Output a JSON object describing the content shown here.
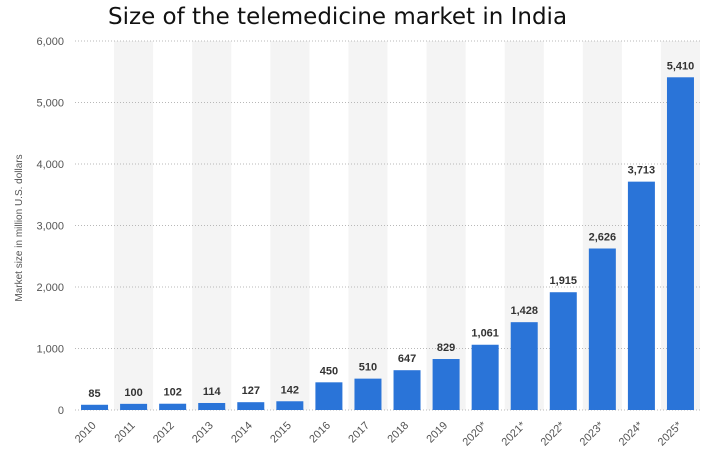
{
  "chart_data": {
    "type": "bar",
    "title": "Size of the telemedicine market in India",
    "xlabel": "",
    "ylabel": "Market size in million U.S. dollars",
    "categories": [
      "2010",
      "2011",
      "2012",
      "2013",
      "2014",
      "2015",
      "2016",
      "2017",
      "2018",
      "2019",
      "2020*",
      "2021*",
      "2022*",
      "2023*",
      "2024*",
      "2025*"
    ],
    "values": [
      85,
      100,
      102,
      114,
      127,
      142,
      450,
      510,
      647,
      829,
      1061,
      1428,
      1915,
      2626,
      3713,
      5410
    ],
    "value_labels": [
      "85",
      "100",
      "102",
      "114",
      "127",
      "142",
      "450",
      "510",
      "647",
      "829",
      "1,061",
      "1,428",
      "1,915",
      "2,626",
      "3,713",
      "5,410"
    ],
    "y_ticks": [
      0,
      1000,
      2000,
      3000,
      4000,
      5000,
      6000
    ],
    "y_tick_labels": [
      "0",
      "1,000",
      "2,000",
      "3,000",
      "4,000",
      "5,000",
      "6,000"
    ],
    "ylim": [
      0,
      6000
    ],
    "grid": true,
    "legend": "none",
    "colors": {
      "bar": "#2a74d8",
      "band": "#f4f4f4",
      "grid": "#b8b8b8"
    }
  }
}
